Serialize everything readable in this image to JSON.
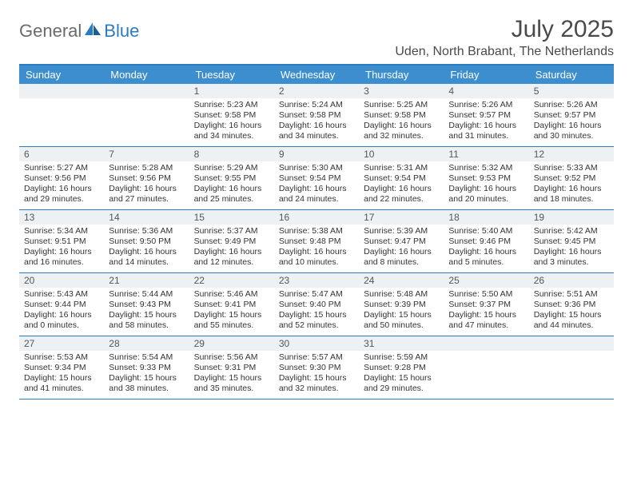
{
  "brand": {
    "part1": "General",
    "part2": "Blue"
  },
  "title": "July 2025",
  "location": "Uden, North Brabant, The Netherlands",
  "colors": {
    "accent": "#2a7bbf",
    "header_bar": "#3d8ecf",
    "date_bg": "#eef1f4",
    "text": "#333333",
    "title_text": "#4a4a4a",
    "logo_gray": "#6a6a6a"
  },
  "day_headers": [
    "Sunday",
    "Monday",
    "Tuesday",
    "Wednesday",
    "Thursday",
    "Friday",
    "Saturday"
  ],
  "weeks": [
    [
      {
        "date": "",
        "sunrise": "",
        "sunset": "",
        "daylight": ""
      },
      {
        "date": "",
        "sunrise": "",
        "sunset": "",
        "daylight": ""
      },
      {
        "date": "1",
        "sunrise": "Sunrise: 5:23 AM",
        "sunset": "Sunset: 9:58 PM",
        "daylight": "Daylight: 16 hours and 34 minutes."
      },
      {
        "date": "2",
        "sunrise": "Sunrise: 5:24 AM",
        "sunset": "Sunset: 9:58 PM",
        "daylight": "Daylight: 16 hours and 34 minutes."
      },
      {
        "date": "3",
        "sunrise": "Sunrise: 5:25 AM",
        "sunset": "Sunset: 9:58 PM",
        "daylight": "Daylight: 16 hours and 32 minutes."
      },
      {
        "date": "4",
        "sunrise": "Sunrise: 5:26 AM",
        "sunset": "Sunset: 9:57 PM",
        "daylight": "Daylight: 16 hours and 31 minutes."
      },
      {
        "date": "5",
        "sunrise": "Sunrise: 5:26 AM",
        "sunset": "Sunset: 9:57 PM",
        "daylight": "Daylight: 16 hours and 30 minutes."
      }
    ],
    [
      {
        "date": "6",
        "sunrise": "Sunrise: 5:27 AM",
        "sunset": "Sunset: 9:56 PM",
        "daylight": "Daylight: 16 hours and 29 minutes."
      },
      {
        "date": "7",
        "sunrise": "Sunrise: 5:28 AM",
        "sunset": "Sunset: 9:56 PM",
        "daylight": "Daylight: 16 hours and 27 minutes."
      },
      {
        "date": "8",
        "sunrise": "Sunrise: 5:29 AM",
        "sunset": "Sunset: 9:55 PM",
        "daylight": "Daylight: 16 hours and 25 minutes."
      },
      {
        "date": "9",
        "sunrise": "Sunrise: 5:30 AM",
        "sunset": "Sunset: 9:54 PM",
        "daylight": "Daylight: 16 hours and 24 minutes."
      },
      {
        "date": "10",
        "sunrise": "Sunrise: 5:31 AM",
        "sunset": "Sunset: 9:54 PM",
        "daylight": "Daylight: 16 hours and 22 minutes."
      },
      {
        "date": "11",
        "sunrise": "Sunrise: 5:32 AM",
        "sunset": "Sunset: 9:53 PM",
        "daylight": "Daylight: 16 hours and 20 minutes."
      },
      {
        "date": "12",
        "sunrise": "Sunrise: 5:33 AM",
        "sunset": "Sunset: 9:52 PM",
        "daylight": "Daylight: 16 hours and 18 minutes."
      }
    ],
    [
      {
        "date": "13",
        "sunrise": "Sunrise: 5:34 AM",
        "sunset": "Sunset: 9:51 PM",
        "daylight": "Daylight: 16 hours and 16 minutes."
      },
      {
        "date": "14",
        "sunrise": "Sunrise: 5:36 AM",
        "sunset": "Sunset: 9:50 PM",
        "daylight": "Daylight: 16 hours and 14 minutes."
      },
      {
        "date": "15",
        "sunrise": "Sunrise: 5:37 AM",
        "sunset": "Sunset: 9:49 PM",
        "daylight": "Daylight: 16 hours and 12 minutes."
      },
      {
        "date": "16",
        "sunrise": "Sunrise: 5:38 AM",
        "sunset": "Sunset: 9:48 PM",
        "daylight": "Daylight: 16 hours and 10 minutes."
      },
      {
        "date": "17",
        "sunrise": "Sunrise: 5:39 AM",
        "sunset": "Sunset: 9:47 PM",
        "daylight": "Daylight: 16 hours and 8 minutes."
      },
      {
        "date": "18",
        "sunrise": "Sunrise: 5:40 AM",
        "sunset": "Sunset: 9:46 PM",
        "daylight": "Daylight: 16 hours and 5 minutes."
      },
      {
        "date": "19",
        "sunrise": "Sunrise: 5:42 AM",
        "sunset": "Sunset: 9:45 PM",
        "daylight": "Daylight: 16 hours and 3 minutes."
      }
    ],
    [
      {
        "date": "20",
        "sunrise": "Sunrise: 5:43 AM",
        "sunset": "Sunset: 9:44 PM",
        "daylight": "Daylight: 16 hours and 0 minutes."
      },
      {
        "date": "21",
        "sunrise": "Sunrise: 5:44 AM",
        "sunset": "Sunset: 9:43 PM",
        "daylight": "Daylight: 15 hours and 58 minutes."
      },
      {
        "date": "22",
        "sunrise": "Sunrise: 5:46 AM",
        "sunset": "Sunset: 9:41 PM",
        "daylight": "Daylight: 15 hours and 55 minutes."
      },
      {
        "date": "23",
        "sunrise": "Sunrise: 5:47 AM",
        "sunset": "Sunset: 9:40 PM",
        "daylight": "Daylight: 15 hours and 52 minutes."
      },
      {
        "date": "24",
        "sunrise": "Sunrise: 5:48 AM",
        "sunset": "Sunset: 9:39 PM",
        "daylight": "Daylight: 15 hours and 50 minutes."
      },
      {
        "date": "25",
        "sunrise": "Sunrise: 5:50 AM",
        "sunset": "Sunset: 9:37 PM",
        "daylight": "Daylight: 15 hours and 47 minutes."
      },
      {
        "date": "26",
        "sunrise": "Sunrise: 5:51 AM",
        "sunset": "Sunset: 9:36 PM",
        "daylight": "Daylight: 15 hours and 44 minutes."
      }
    ],
    [
      {
        "date": "27",
        "sunrise": "Sunrise: 5:53 AM",
        "sunset": "Sunset: 9:34 PM",
        "daylight": "Daylight: 15 hours and 41 minutes."
      },
      {
        "date": "28",
        "sunrise": "Sunrise: 5:54 AM",
        "sunset": "Sunset: 9:33 PM",
        "daylight": "Daylight: 15 hours and 38 minutes."
      },
      {
        "date": "29",
        "sunrise": "Sunrise: 5:56 AM",
        "sunset": "Sunset: 9:31 PM",
        "daylight": "Daylight: 15 hours and 35 minutes."
      },
      {
        "date": "30",
        "sunrise": "Sunrise: 5:57 AM",
        "sunset": "Sunset: 9:30 PM",
        "daylight": "Daylight: 15 hours and 32 minutes."
      },
      {
        "date": "31",
        "sunrise": "Sunrise: 5:59 AM",
        "sunset": "Sunset: 9:28 PM",
        "daylight": "Daylight: 15 hours and 29 minutes."
      },
      {
        "date": "",
        "sunrise": "",
        "sunset": "",
        "daylight": ""
      },
      {
        "date": "",
        "sunrise": "",
        "sunset": "",
        "daylight": ""
      }
    ]
  ]
}
